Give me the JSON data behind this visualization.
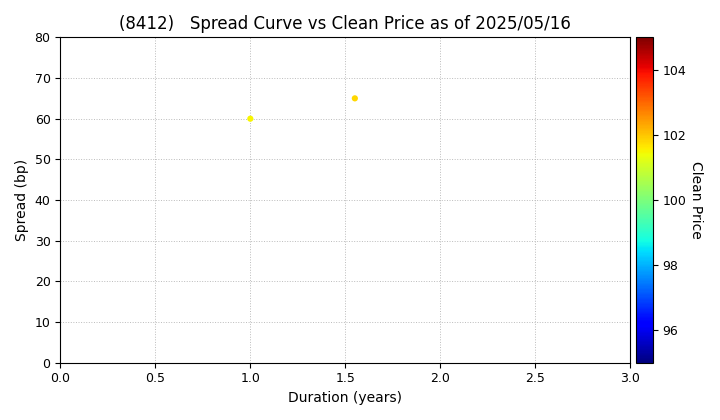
{
  "title": "(8412)   Spread Curve vs Clean Price as of 2025/05/16",
  "xlabel": "Duration (years)",
  "ylabel": "Spread (bp)",
  "colorbar_label": "Clean Price",
  "xlim": [
    0.0,
    3.0
  ],
  "ylim": [
    0,
    80
  ],
  "xticks": [
    0.0,
    0.5,
    1.0,
    1.5,
    2.0,
    2.5,
    3.0
  ],
  "yticks": [
    0,
    10,
    20,
    30,
    40,
    50,
    60,
    70,
    80
  ],
  "colorbar_min": 95.0,
  "colorbar_max": 105.0,
  "colorbar_ticks": [
    96,
    98,
    100,
    102,
    104
  ],
  "points": [
    {
      "duration": 1.0,
      "spread": 60,
      "price": 101.5
    },
    {
      "duration": 1.55,
      "spread": 65,
      "price": 101.8
    }
  ],
  "marker_size": 20,
  "background_color": "#ffffff",
  "grid_color": "#bbbbbb",
  "title_fontsize": 12,
  "axis_fontsize": 10,
  "colorbar_fontsize": 9,
  "fig_width": 7.2,
  "fig_height": 4.2,
  "fig_dpi": 100
}
